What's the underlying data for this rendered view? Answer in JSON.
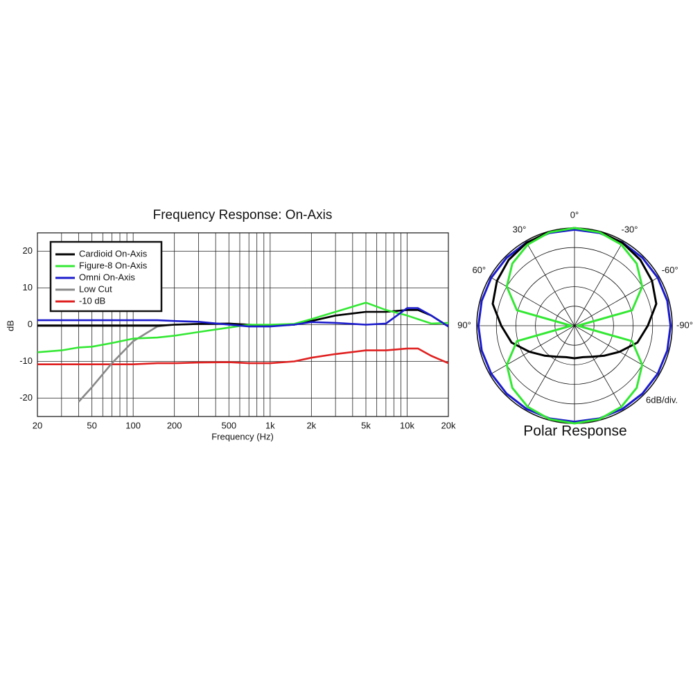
{
  "chart_data": [
    {
      "type": "line",
      "title": "Frequency Response: On-Axis",
      "xlabel": "Frequency (Hz)",
      "ylabel": "dB",
      "log_x": true,
      "grid": true,
      "xlim": [
        20,
        20000
      ],
      "ylim": [
        -25,
        25
      ],
      "xticks": [
        20,
        50,
        100,
        200,
        500,
        {
          "value": 1000,
          "label": "1k"
        },
        {
          "value": 2000,
          "label": "2k"
        },
        {
          "value": 5000,
          "label": "5k"
        },
        {
          "value": 10000,
          "label": "10k"
        },
        {
          "value": 20000,
          "label": "20k"
        }
      ],
      "xgrid_minor": [
        30,
        40,
        60,
        70,
        80,
        90,
        300,
        400,
        600,
        700,
        800,
        900,
        3000,
        4000,
        6000,
        7000,
        8000,
        9000
      ],
      "yticks": [
        -20,
        -10,
        0,
        10,
        20
      ],
      "legend_position": "upper-left",
      "x": [
        20,
        30,
        40,
        50,
        70,
        100,
        150,
        200,
        300,
        500,
        700,
        1000,
        1500,
        2000,
        3000,
        5000,
        7000,
        10000,
        12000,
        15000,
        20000
      ],
      "series": [
        {
          "name": "Cardioid On-Axis",
          "color": "#000000",
          "values": [
            -0.3,
            -0.3,
            -0.3,
            -0.3,
            -0.3,
            -0.3,
            -0.3,
            0,
            0.2,
            0.3,
            0,
            -0.3,
            0,
            1,
            2.5,
            3.5,
            3.5,
            4,
            4,
            2.5,
            -0.5
          ]
        },
        {
          "name": "Figure-8 On-Axis",
          "color": "#33e833",
          "values": [
            -7.5,
            -7,
            -6.2,
            -6,
            -5,
            -3.8,
            -3.5,
            -3,
            -2,
            -0.8,
            0,
            0,
            0.2,
            1.5,
            3.5,
            6,
            4,
            2.5,
            1.5,
            0.3,
            0.5
          ]
        },
        {
          "name": "Omni On-Axis",
          "color": "#1a1acc",
          "values": [
            1.2,
            1.2,
            1.2,
            1.2,
            1.2,
            1.2,
            1.2,
            1,
            0.8,
            0,
            -0.5,
            -0.5,
            0,
            0.7,
            0.5,
            0,
            0.3,
            4.5,
            4.5,
            2.5,
            -0.5
          ]
        },
        {
          "name": "Low Cut",
          "color": "#888888",
          "values": [
            null,
            null,
            -21,
            -17,
            -10.5,
            -4.5,
            -0.5,
            0,
            0.2,
            0.3,
            0,
            -0.3,
            0,
            1,
            2.5,
            3.5,
            3.5,
            4,
            4,
            2.5,
            -0.5
          ]
        },
        {
          "name": "-10 dB",
          "color": "#e02020",
          "values": [
            -10.8,
            -10.8,
            -10.8,
            -10.8,
            -10.8,
            -10.8,
            -10.5,
            -10.5,
            -10.3,
            -10.2,
            -10.5,
            -10.5,
            -10,
            -9,
            -8,
            -7,
            -7,
            -6.5,
            -6.5,
            -8.5,
            -10.5
          ]
        }
      ]
    },
    {
      "type": "polar",
      "title": "Polar Response",
      "annotation": "6dB/div.",
      "rlim": [
        -30,
        0
      ],
      "rticks": [
        -24,
        -18,
        -12,
        -6,
        0
      ],
      "angle_grid": [
        0,
        30,
        60,
        90,
        120,
        150,
        180,
        210,
        240,
        270,
        300,
        330
      ],
      "angle_ticks": [
        {
          "value": 0,
          "label": "0°"
        },
        {
          "value": 30,
          "label": "30°"
        },
        {
          "value": -30,
          "label": "-30°"
        },
        {
          "value": 60,
          "label": "60°"
        },
        {
          "value": -60,
          "label": "-60°"
        },
        {
          "value": 90,
          "label": "90°"
        },
        {
          "value": -90,
          "label": "-90°"
        }
      ],
      "angles": [
        0,
        15,
        30,
        45,
        60,
        75,
        90,
        105,
        120,
        135,
        150,
        165,
        180,
        195,
        210,
        225,
        240,
        255,
        270,
        285,
        300,
        315,
        330,
        345
      ],
      "series": [
        {
          "name": "Omni",
          "color": "#1a1acc",
          "values": [
            -0.5,
            -0.5,
            -0.5,
            -0.5,
            -0.5,
            -0.5,
            -0.5,
            -0.5,
            -0.5,
            -0.5,
            -0.5,
            -0.5,
            -0.5,
            -0.5,
            -0.5,
            -0.5,
            -0.5,
            -0.5,
            -0.5,
            -0.5,
            -0.5,
            -0.5,
            -0.5,
            -0.5
          ]
        },
        {
          "name": "Cardioid",
          "color": "#000000",
          "values": [
            0,
            -0.15,
            -0.6,
            -1.4,
            -2.5,
            -4,
            -7.5,
            -10,
            -14,
            -17,
            -19,
            -20,
            -20,
            -20,
            -19,
            -17,
            -14,
            -10,
            -7.5,
            -4,
            -2.5,
            -1.4,
            -0.6,
            -0.15
          ]
        },
        {
          "name": "Figure-8",
          "color": "#33e833",
          "values": [
            0,
            -0.3,
            -1.25,
            -3,
            -6,
            -11.7,
            -29,
            -11.7,
            -6,
            -3,
            -1.25,
            -0.3,
            0,
            -0.3,
            -1.25,
            -3,
            -6,
            -11.7,
            -29,
            -11.7,
            -6,
            -3,
            -1.25,
            -0.3
          ]
        }
      ]
    }
  ]
}
